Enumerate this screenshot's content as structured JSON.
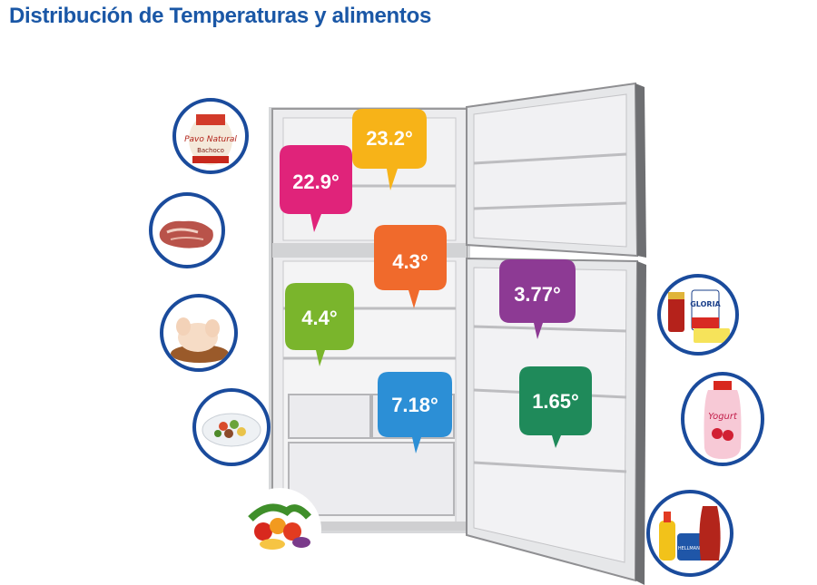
{
  "title": "Distribución de Temperaturas y alimentos",
  "temperatures": [
    {
      "id": "freezer-top",
      "label": "23.2°",
      "color": "#f7b318"
    },
    {
      "id": "freezer-left",
      "label": "22.9°",
      "color": "#e0237a"
    },
    {
      "id": "fridge-top-center",
      "label": "4.3°",
      "color": "#f06a2c"
    },
    {
      "id": "fridge-left",
      "label": "4.4°",
      "color": "#7ab52c"
    },
    {
      "id": "door-upper",
      "label": "3.77°",
      "color": "#8d3a94"
    },
    {
      "id": "fridge-drawer",
      "label": "7.18°",
      "color": "#2c8fd6"
    },
    {
      "id": "door-lower",
      "label": "1.65°",
      "color": "#1f8a5a"
    }
  ],
  "food_icons": {
    "left": [
      "turkey-package-icon",
      "meat-steak-icon",
      "raw-chicken-icon",
      "salad-plate-icon",
      "vegetables-icon"
    ],
    "right": [
      "jars-and-butter-icon",
      "yogurt-bottle-icon",
      "condiments-icon"
    ]
  },
  "product_text": {
    "turkey": "Pavo Natural",
    "turkey_brand": "Bachoco",
    "gloria": "GLORIA",
    "yogurt": "Yogurt",
    "hellmanns": "HELLMANN'S"
  }
}
